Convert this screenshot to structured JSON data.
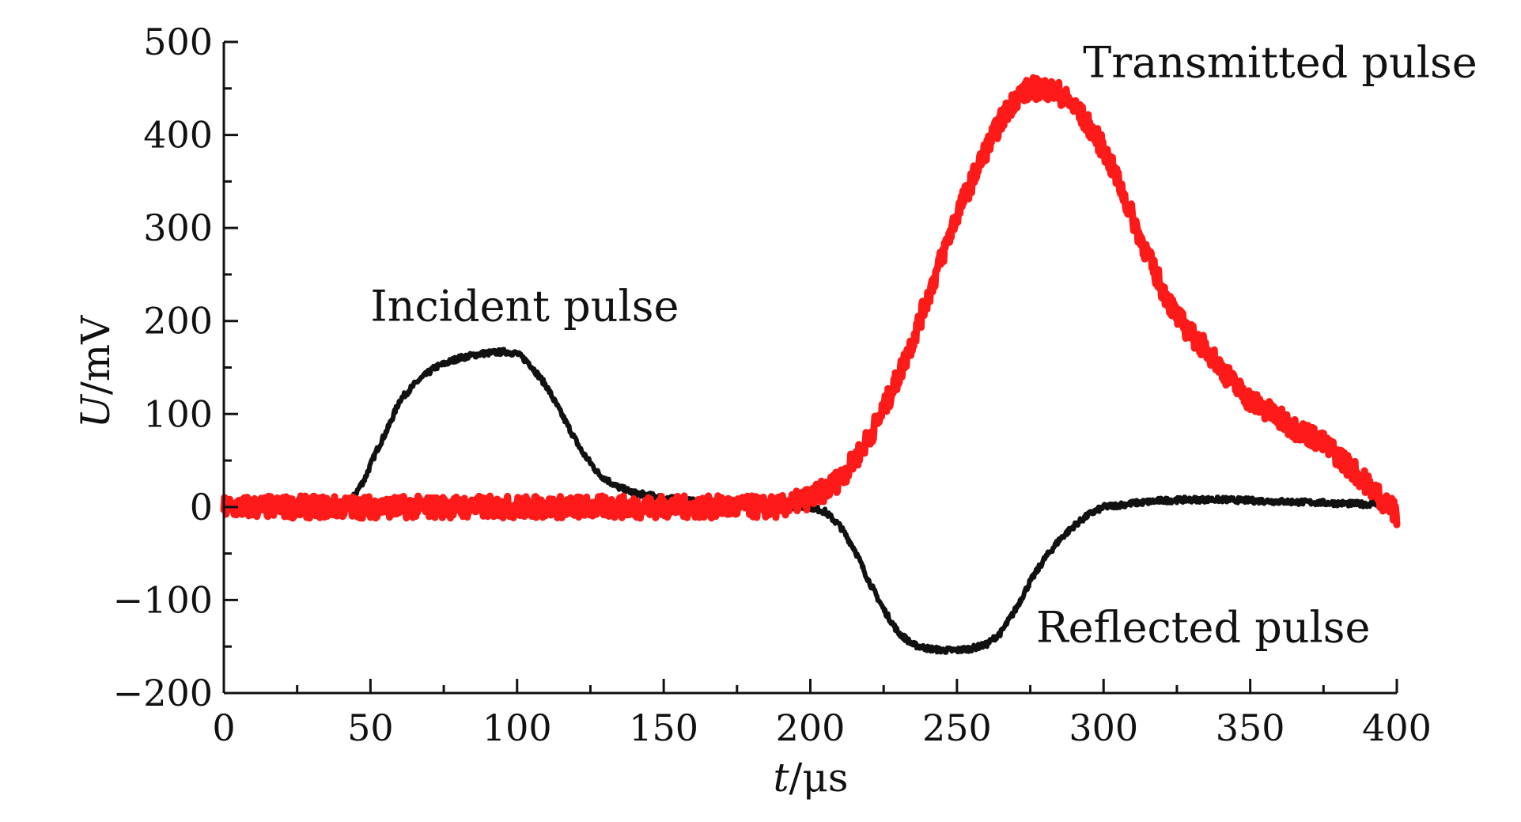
{
  "chart_data": {
    "type": "line",
    "xlabel": "t/μs",
    "xlabel_var": "t",
    "xlabel_unit": "/μs",
    "ylabel": "U/mV",
    "ylabel_var": "U",
    "ylabel_unit": "/mV",
    "xlim": [
      0,
      400
    ],
    "ylim": [
      -200,
      500
    ],
    "x_ticks": [
      0,
      50,
      100,
      150,
      200,
      250,
      300,
      350,
      400
    ],
    "x_tick_labels": [
      "0",
      "50",
      "100",
      "150",
      "200",
      "250",
      "300",
      "350",
      "400"
    ],
    "y_ticks": [
      -200,
      -100,
      0,
      100,
      200,
      300,
      400,
      500
    ],
    "y_tick_labels": [
      "−200",
      "−100",
      "0",
      "100",
      "200",
      "300",
      "400",
      "500"
    ],
    "grid": false,
    "legend": "none",
    "annotations": [
      {
        "text": "Incident pulse",
        "x": 50,
        "y": 200
      },
      {
        "text": "Transmitted pulse",
        "x": 293,
        "y": 462
      },
      {
        "text": "Reflected pulse",
        "x": 277,
        "y": -145
      }
    ],
    "series": [
      {
        "color": "#111111",
        "noise": 3,
        "x": [
          0,
          10,
          20,
          30,
          40,
          44,
          48,
          52,
          56,
          60,
          66,
          72,
          80,
          88,
          96,
          100,
          104,
          110,
          116,
          122,
          128,
          134,
          140,
          150,
          160,
          170,
          180,
          190,
          200,
          205,
          210,
          215,
          220,
          225,
          230,
          235,
          240,
          245,
          250,
          255,
          260,
          265,
          270,
          275,
          280,
          285,
          290,
          295,
          300,
          310,
          320,
          330,
          340,
          350,
          360,
          370,
          380,
          390,
          395,
          398,
          400
        ],
        "y": [
          0,
          0,
          0,
          0,
          2,
          10,
          30,
          60,
          85,
          115,
          135,
          150,
          160,
          165,
          167,
          165,
          155,
          130,
          95,
          60,
          35,
          22,
          15,
          10,
          6,
          4,
          2,
          1,
          0,
          -5,
          -20,
          -45,
          -80,
          -110,
          -135,
          -148,
          -152,
          -154,
          -154,
          -152,
          -148,
          -135,
          -110,
          -80,
          -55,
          -35,
          -20,
          -8,
          0,
          4,
          7,
          8,
          8,
          7,
          6,
          5,
          4,
          3,
          5,
          0,
          -5
        ]
      },
      {
        "color": "#ff1a1a",
        "noise": 12,
        "x": [
          0,
          20,
          40,
          60,
          80,
          100,
          120,
          140,
          160,
          180,
          190,
          195,
          200,
          205,
          210,
          215,
          220,
          225,
          230,
          235,
          240,
          245,
          250,
          255,
          260,
          265,
          270,
          275,
          280,
          285,
          290,
          295,
          300,
          305,
          310,
          315,
          320,
          325,
          330,
          335,
          340,
          345,
          350,
          355,
          360,
          365,
          370,
          375,
          380,
          385,
          390,
          393,
          396,
          398,
          400
        ],
        "y": [
          0,
          0,
          0,
          0,
          0,
          0,
          0,
          0,
          0,
          0,
          0,
          5,
          10,
          18,
          30,
          50,
          75,
          105,
          140,
          180,
          225,
          270,
          315,
          350,
          385,
          415,
          440,
          450,
          450,
          445,
          430,
          410,
          385,
          350,
          310,
          270,
          235,
          205,
          185,
          170,
          150,
          130,
          115,
          105,
          95,
          85,
          78,
          68,
          55,
          40,
          25,
          15,
          5,
          0,
          -10
        ]
      }
    ]
  }
}
